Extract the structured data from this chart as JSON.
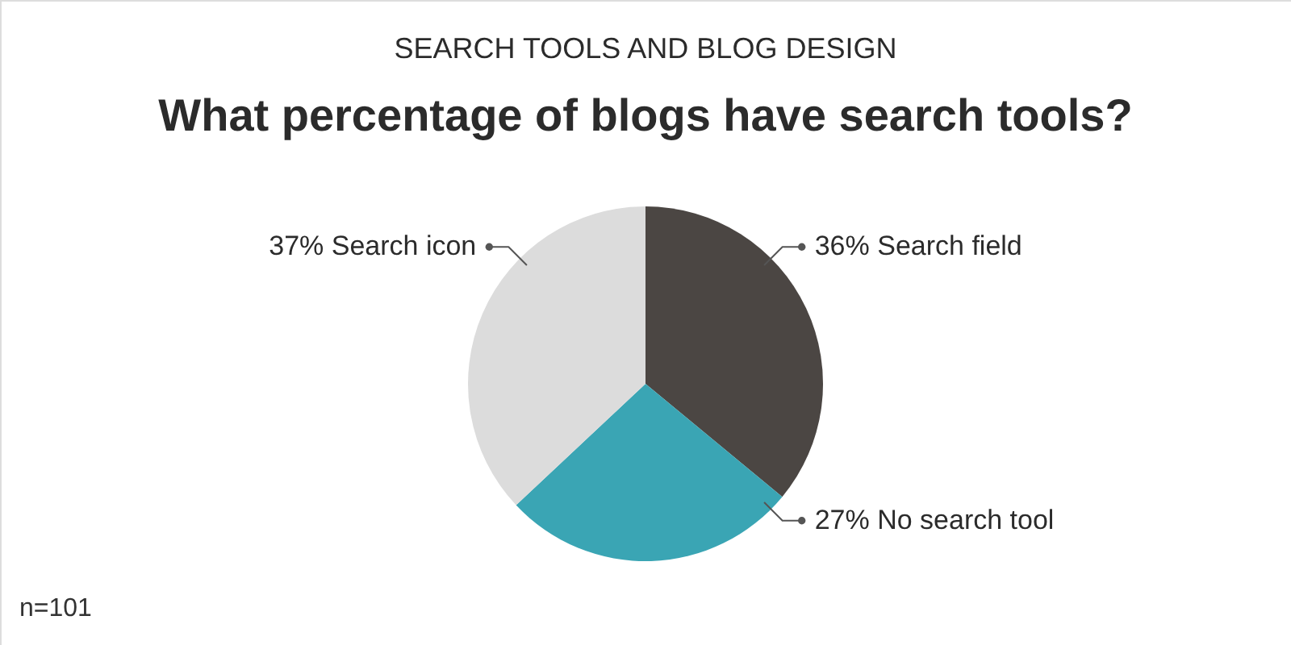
{
  "chart_data": {
    "type": "pie",
    "subtitle": "SEARCH TOOLS AND BLOG DESIGN",
    "title": "What percentage of blogs have search tools?",
    "categories": [
      "Search field",
      "No search tool",
      "Search icon"
    ],
    "values": [
      36,
      27,
      37
    ],
    "colors": [
      "#4b4643",
      "#3aa5b4",
      "#dcdcdc"
    ],
    "value_labels": [
      "36%",
      "27%",
      "37%"
    ],
    "annotations": [
      "n=101"
    ]
  }
}
